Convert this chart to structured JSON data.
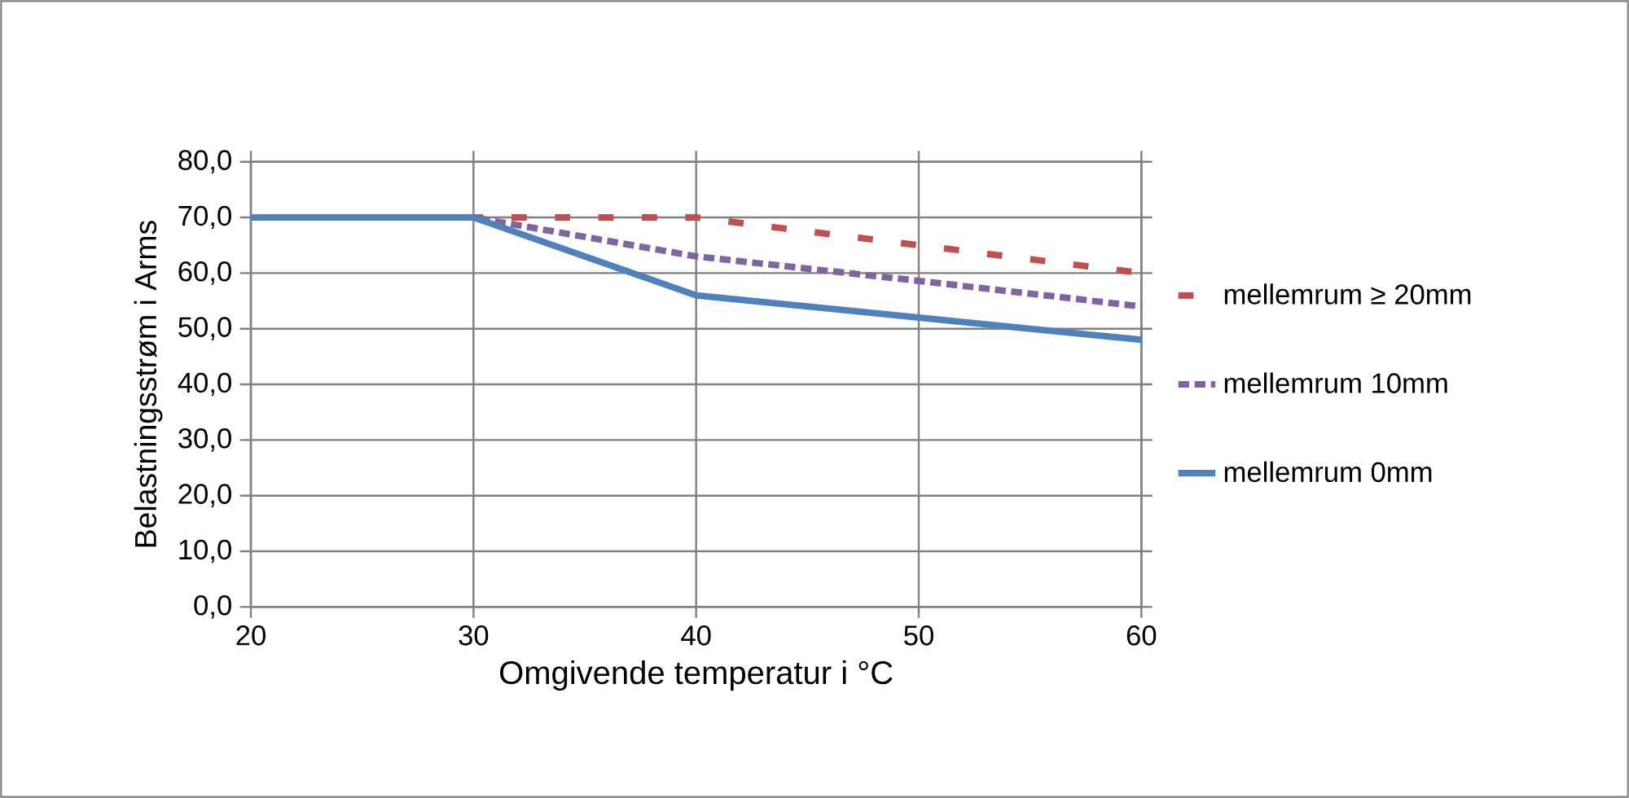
{
  "chart_data": {
    "type": "line",
    "xlabel": "Omgivende temperatur i °C",
    "ylabel": "Belastningsstrøm i Arms",
    "x": [
      20,
      30,
      40,
      50,
      60
    ],
    "series": [
      {
        "name": "mellemrum ≥ 20mm",
        "color": "#c0504d",
        "line_style": "dashed",
        "values": [
          70,
          70,
          70,
          65,
          60
        ]
      },
      {
        "name": "mellemrum 10mm",
        "color": "#8064a2",
        "line_style": "dotted",
        "values": [
          70,
          70,
          63,
          58.6,
          54
        ]
      },
      {
        "name": "mellemrum 0mm",
        "color": "#4f81bd",
        "line_style": "solid",
        "values": [
          70,
          70,
          56,
          52,
          48
        ]
      }
    ],
    "xlim": [
      20,
      60
    ],
    "ylim": [
      0,
      80
    ],
    "xticks": [
      20,
      30,
      40,
      50,
      60
    ],
    "yticks": [
      {
        "value": 0,
        "label": "0,0"
      },
      {
        "value": 10,
        "label": "10,0"
      },
      {
        "value": 20,
        "label": "20,0"
      },
      {
        "value": 30,
        "label": "30,0"
      },
      {
        "value": 40,
        "label": "40,0"
      },
      {
        "value": 50,
        "label": "50,0"
      },
      {
        "value": 60,
        "label": "60,0"
      },
      {
        "value": 70,
        "label": "70,0"
      },
      {
        "value": 80,
        "label": "80,0"
      }
    ],
    "grid": true,
    "legend": "right"
  }
}
